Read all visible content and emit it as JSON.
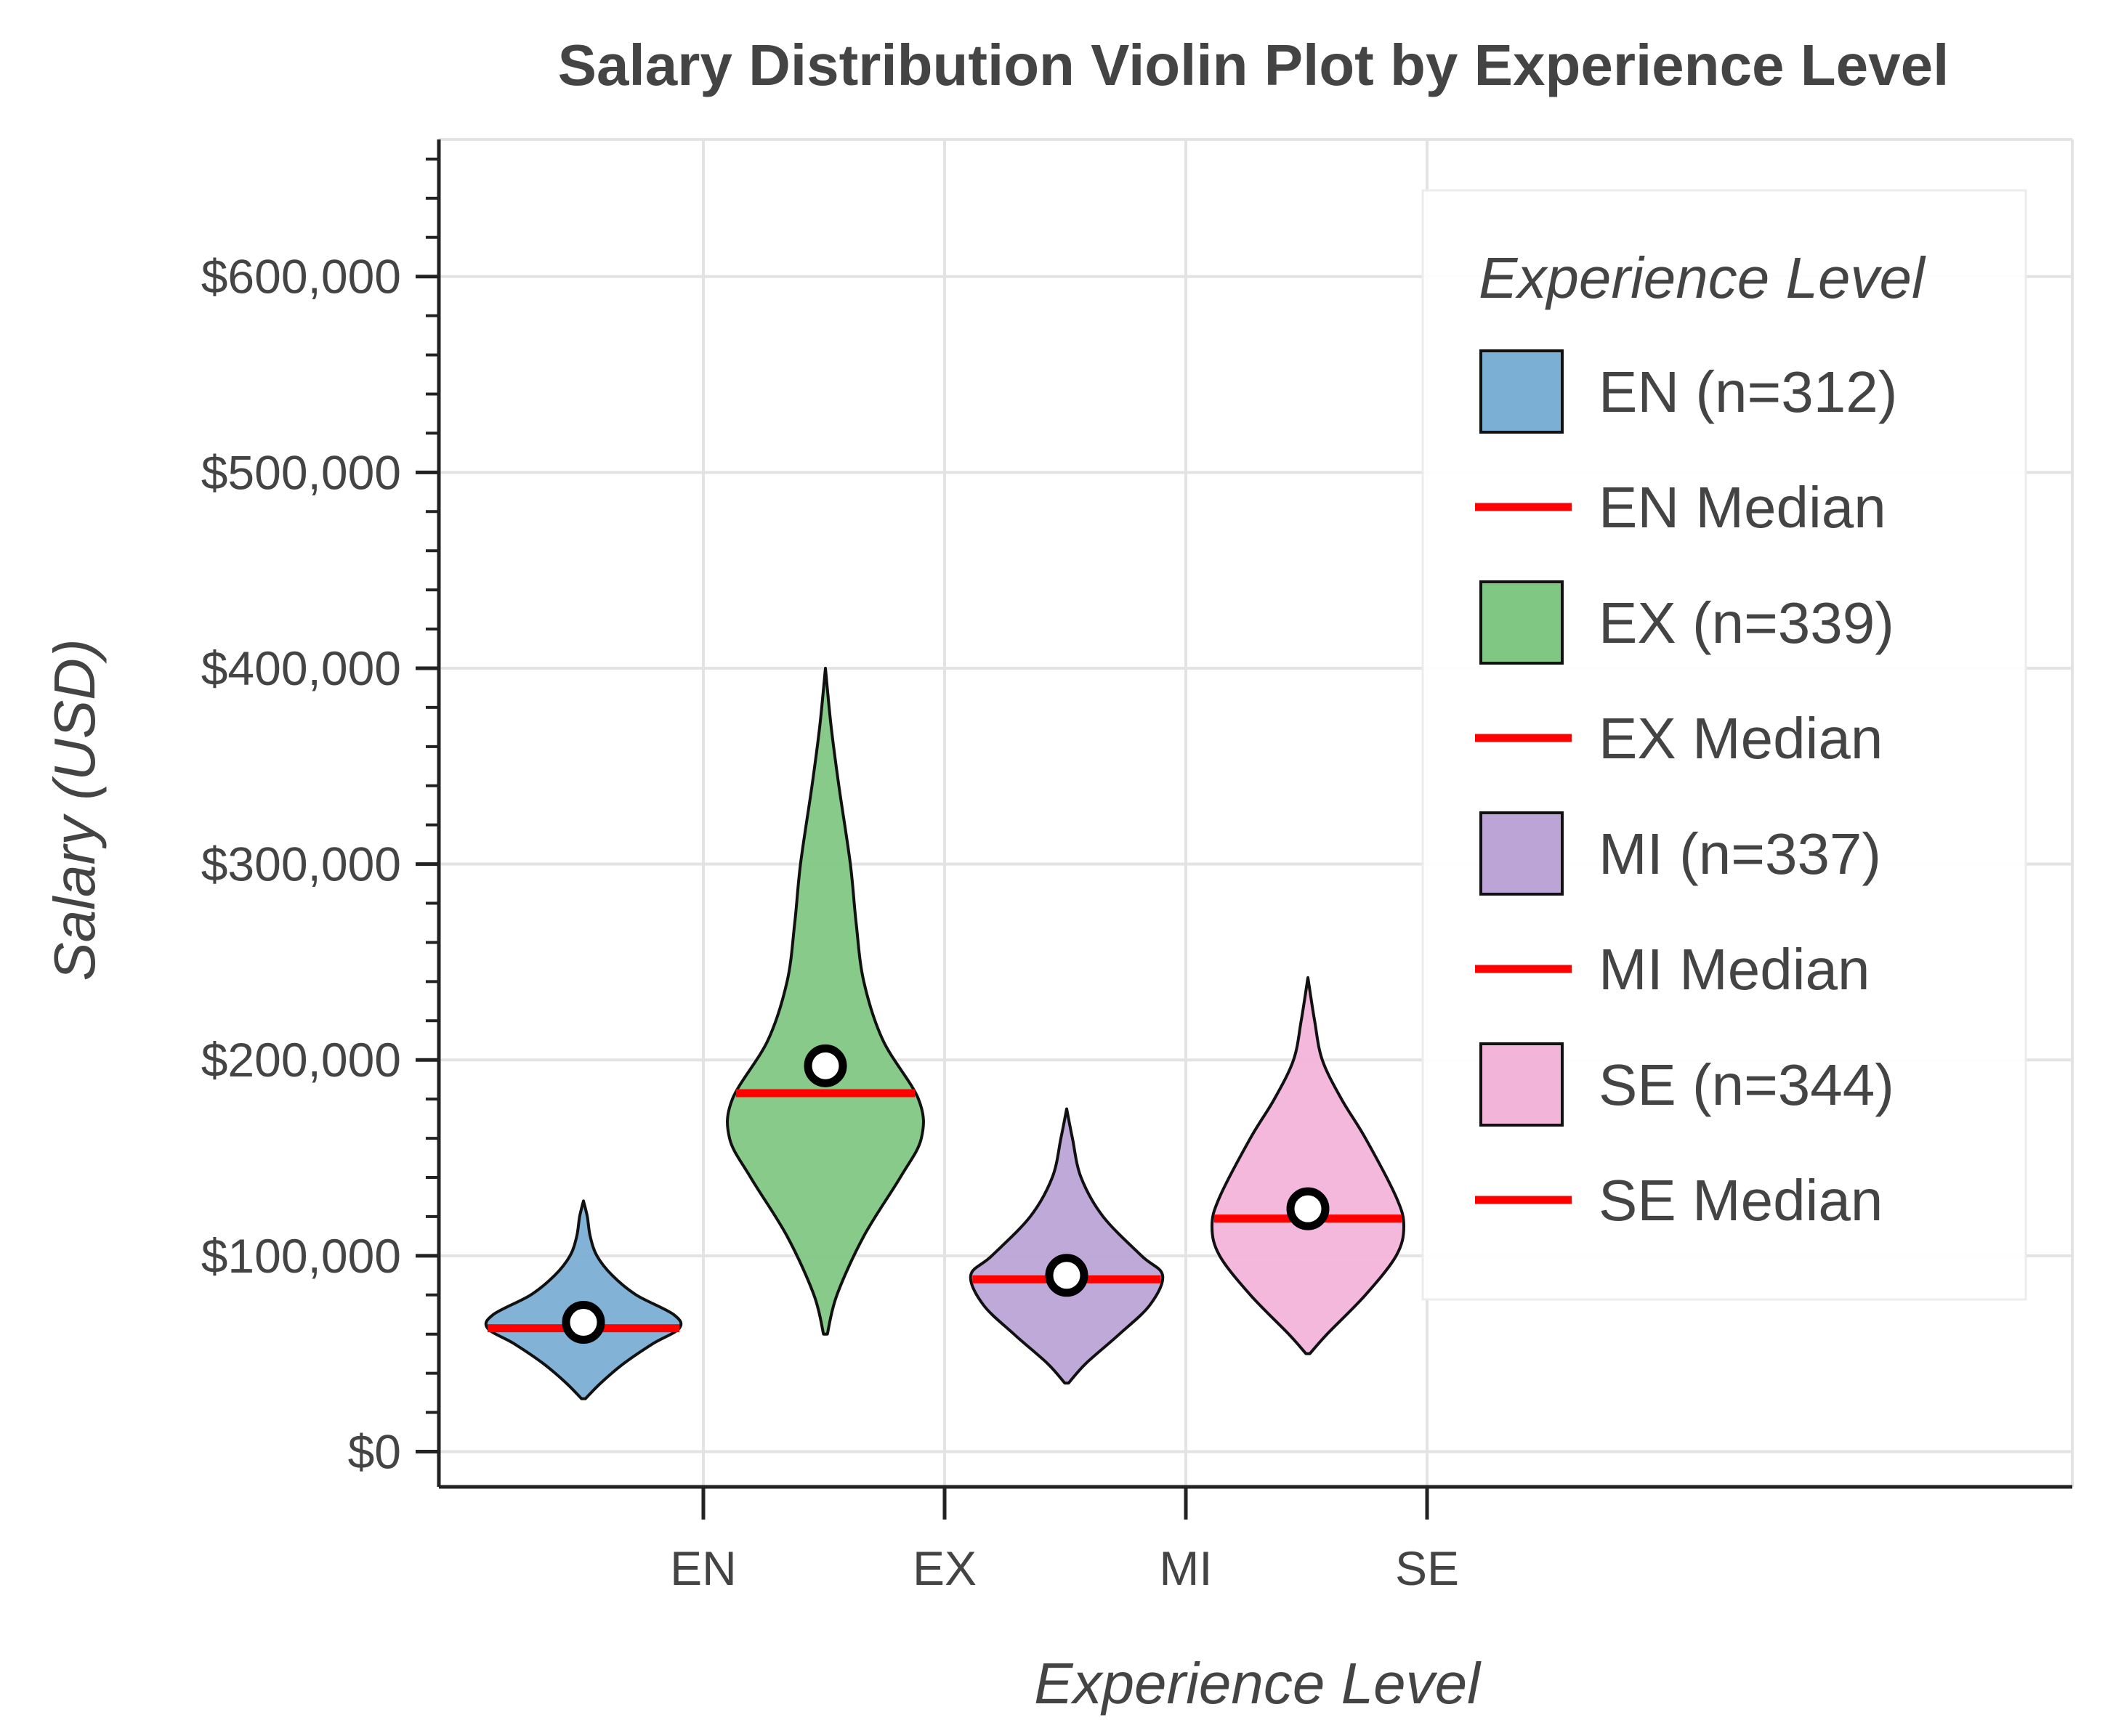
{
  "chart_data": {
    "type": "violin",
    "title": "Salary Distribution Violin Plot by Experience Level",
    "xlabel": "Experience Level",
    "ylabel": "Salary (USD)",
    "categories": [
      "EN",
      "EX",
      "MI",
      "SE"
    ],
    "ylim": [
      -18000,
      670000
    ],
    "yticks": [
      0,
      100000,
      200000,
      300000,
      400000,
      500000,
      600000
    ],
    "ytick_labels": [
      "$0",
      "$100,000",
      "$200,000",
      "$300,000",
      "$400,000",
      "$500,000",
      "$600,000"
    ],
    "grid": true,
    "legend_title": "Experience Level",
    "legend_position": "top-right",
    "median_color": "#ff0000",
    "mean_marker": "white circle",
    "series": [
      {
        "name": "EN (n=312)",
        "median_label": "EN Median",
        "category": "EN",
        "color": "#7bafd4",
        "min": 27000,
        "max": 128000,
        "median": 63000,
        "mean": 66000,
        "density": [
          [
            27000,
            0.02
          ],
          [
            35000,
            0.18
          ],
          [
            45000,
            0.42
          ],
          [
            55000,
            0.72
          ],
          [
            63000,
            1.0
          ],
          [
            70000,
            0.94
          ],
          [
            80000,
            0.55
          ],
          [
            90000,
            0.3
          ],
          [
            100000,
            0.14
          ],
          [
            110000,
            0.07
          ],
          [
            120000,
            0.04
          ],
          [
            128000,
            0.0
          ]
        ]
      },
      {
        "name": "EX (n=339)",
        "median_label": "EX Median",
        "category": "EX",
        "color": "#81c784",
        "min": 60000,
        "max": 400000,
        "median": 183000,
        "mean": 197000,
        "density": [
          [
            60000,
            0.02
          ],
          [
            80000,
            0.12
          ],
          [
            110000,
            0.4
          ],
          [
            140000,
            0.78
          ],
          [
            160000,
            1.0
          ],
          [
            180000,
            0.97
          ],
          [
            210000,
            0.6
          ],
          [
            240000,
            0.4
          ],
          [
            270000,
            0.32
          ],
          [
            300000,
            0.26
          ],
          [
            340000,
            0.14
          ],
          [
            370000,
            0.06
          ],
          [
            400000,
            0.0
          ]
        ]
      },
      {
        "name": "MI (n=337)",
        "median_label": "MI Median",
        "category": "MI",
        "color": "#bca4d7",
        "min": 35000,
        "max": 175000,
        "median": 88000,
        "mean": 90000,
        "density": [
          [
            35000,
            0.02
          ],
          [
            45000,
            0.2
          ],
          [
            60000,
            0.55
          ],
          [
            75000,
            0.87
          ],
          [
            90000,
            1.0
          ],
          [
            100000,
            0.78
          ],
          [
            120000,
            0.38
          ],
          [
            140000,
            0.15
          ],
          [
            160000,
            0.06
          ],
          [
            175000,
            0.0
          ]
        ]
      },
      {
        "name": "SE (n=344)",
        "median_label": "SE Median",
        "category": "SE",
        "color": "#f2b4d9",
        "min": 50000,
        "max": 242000,
        "median": 119000,
        "mean": 124000,
        "density": [
          [
            50000,
            0.02
          ],
          [
            60000,
            0.2
          ],
          [
            80000,
            0.6
          ],
          [
            100000,
            0.92
          ],
          [
            115000,
            1.0
          ],
          [
            130000,
            0.92
          ],
          [
            160000,
            0.6
          ],
          [
            180000,
            0.35
          ],
          [
            200000,
            0.15
          ],
          [
            220000,
            0.07
          ],
          [
            242000,
            0.0
          ]
        ]
      }
    ]
  }
}
